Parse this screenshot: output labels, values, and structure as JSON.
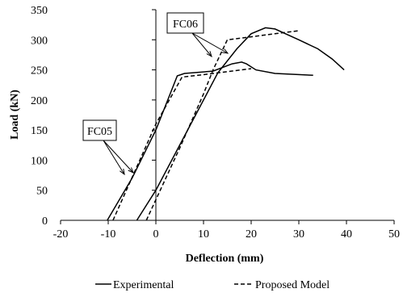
{
  "chart_data": {
    "type": "line",
    "title": "",
    "xlabel": "Deflection (mm)",
    "ylabel": "Load (kN)",
    "xlim": [
      -20,
      50
    ],
    "ylim": [
      0,
      350
    ],
    "xticks": [
      -20,
      -10,
      0,
      10,
      20,
      30,
      40,
      50
    ],
    "yticks": [
      0,
      50,
      100,
      150,
      200,
      250,
      300,
      350
    ],
    "grid": false,
    "legend": {
      "placement": "bottom",
      "entries": [
        {
          "label": "Experimental",
          "style": "solid"
        },
        {
          "label": "Proposed Model",
          "style": "dashed"
        }
      ]
    },
    "annotations": [
      {
        "text": "FC05",
        "points_to": "FC05"
      },
      {
        "text": "FC06",
        "points_to": "FC06"
      }
    ],
    "series": [
      {
        "specimen": "FC05",
        "kind": "Experimental",
        "style": "solid",
        "x": [
          -10.2,
          -5,
          0,
          4.5,
          6,
          12,
          16,
          18,
          19,
          21,
          25,
          33
        ],
        "y": [
          0,
          70,
          150,
          240,
          244,
          248,
          260,
          263,
          260,
          250,
          244,
          241
        ]
      },
      {
        "specimen": "FC05",
        "kind": "Proposed Model",
        "style": "dashed",
        "x": [
          -9,
          0,
          5.5,
          10,
          15,
          20
        ],
        "y": [
          0,
          160,
          238,
          242,
          247,
          252
        ]
      },
      {
        "specimen": "FC06",
        "kind": "Experimental",
        "style": "solid",
        "x": [
          -4,
          0,
          6,
          10,
          13,
          17,
          20,
          23,
          25,
          30,
          34,
          37,
          39.5
        ],
        "y": [
          0,
          50,
          140,
          200,
          245,
          285,
          310,
          320,
          318,
          300,
          285,
          268,
          250
        ]
      },
      {
        "specimen": "FC06",
        "kind": "Proposed Model",
        "style": "dashed",
        "x": [
          -2,
          5,
          10,
          12,
          15,
          20,
          25,
          30
        ],
        "y": [
          0,
          120,
          210,
          250,
          300,
          305,
          310,
          315
        ]
      }
    ]
  }
}
